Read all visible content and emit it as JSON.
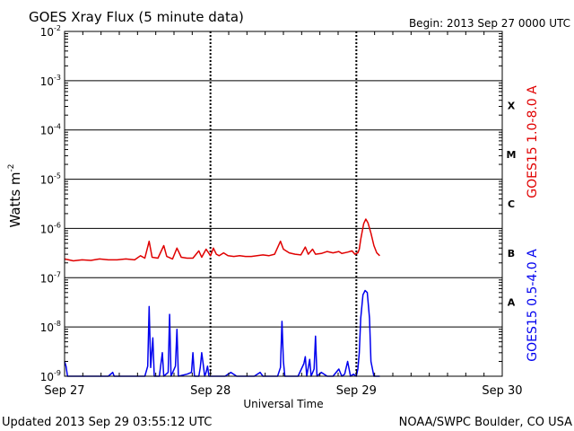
{
  "header": {
    "title": "GOES Xray Flux (5 minute data)",
    "begin": "Begin:  2013 Sep 27 0000 UTC"
  },
  "footer": {
    "updated": "Updated 2013 Sep 29 03:55:12 UTC",
    "credit": "NOAA/SWPC Boulder, CO USA"
  },
  "colors": {
    "long": "#e00000",
    "short": "#0000ee",
    "axis": "#000000"
  },
  "chart_data": {
    "type": "line",
    "title": "GOES Xray Flux (5 minute data)",
    "xlabel": "Universal Time",
    "ylabel_base": "Watts m",
    "ylabel_exp": "-2",
    "yscale": "log",
    "ylim_exp": [
      -9,
      -2
    ],
    "xlim_days": [
      0,
      3
    ],
    "y_ticks": [
      {
        "exp": -2,
        "base": "10",
        "sup": "-2"
      },
      {
        "exp": -3,
        "base": "10",
        "sup": "-3"
      },
      {
        "exp": -4,
        "base": "10",
        "sup": "-4"
      },
      {
        "exp": -5,
        "base": "10",
        "sup": "-5"
      },
      {
        "exp": -6,
        "base": "10",
        "sup": "-6"
      },
      {
        "exp": -7,
        "base": "10",
        "sup": "-7"
      },
      {
        "exp": -8,
        "base": "10",
        "sup": "-8"
      },
      {
        "exp": -9,
        "base": "10",
        "sup": "-9"
      }
    ],
    "x_ticks": [
      {
        "day": 0,
        "label": "Sep 27"
      },
      {
        "day": 1,
        "label": "Sep 28"
      },
      {
        "day": 2,
        "label": "Sep 29"
      },
      {
        "day": 3,
        "label": "Sep 30"
      }
    ],
    "flare_classes": [
      {
        "label": "X",
        "exp": -3.5
      },
      {
        "label": "M",
        "exp": -4.5
      },
      {
        "label": "C",
        "exp": -5.5
      },
      {
        "label": "B",
        "exp": -6.5
      },
      {
        "label": "A",
        "exp": -7.5
      }
    ],
    "grid": true,
    "series": [
      {
        "name": "GOES15 1.0-8.0 A",
        "color": "#e00000",
        "points": [
          [
            0.0,
            2.4e-07
          ],
          [
            0.06,
            2.2e-07
          ],
          [
            0.12,
            2.3e-07
          ],
          [
            0.18,
            2.25e-07
          ],
          [
            0.24,
            2.4e-07
          ],
          [
            0.3,
            2.3e-07
          ],
          [
            0.36,
            2.3e-07
          ],
          [
            0.42,
            2.4e-07
          ],
          [
            0.48,
            2.3e-07
          ],
          [
            0.52,
            2.8e-07
          ],
          [
            0.55,
            2.5e-07
          ],
          [
            0.58,
            5.5e-07
          ],
          [
            0.6,
            2.6e-07
          ],
          [
            0.64,
            2.5e-07
          ],
          [
            0.68,
            4.5e-07
          ],
          [
            0.7,
            2.7e-07
          ],
          [
            0.74,
            2.4e-07
          ],
          [
            0.77,
            4e-07
          ],
          [
            0.8,
            2.6e-07
          ],
          [
            0.84,
            2.5e-07
          ],
          [
            0.88,
            2.5e-07
          ],
          [
            0.92,
            3.5e-07
          ],
          [
            0.94,
            2.6e-07
          ],
          [
            0.97,
            3.8e-07
          ],
          [
            1.0,
            2.8e-07
          ],
          [
            1.02,
            4e-07
          ],
          [
            1.04,
            3e-07
          ],
          [
            1.06,
            2.8e-07
          ],
          [
            1.09,
            3.2e-07
          ],
          [
            1.12,
            2.8e-07
          ],
          [
            1.16,
            2.7e-07
          ],
          [
            1.2,
            2.8e-07
          ],
          [
            1.24,
            2.7e-07
          ],
          [
            1.28,
            2.7e-07
          ],
          [
            1.32,
            2.8e-07
          ],
          [
            1.36,
            2.9e-07
          ],
          [
            1.4,
            2.8e-07
          ],
          [
            1.44,
            3e-07
          ],
          [
            1.48,
            5.5e-07
          ],
          [
            1.5,
            3.8e-07
          ],
          [
            1.54,
            3.2e-07
          ],
          [
            1.58,
            3e-07
          ],
          [
            1.62,
            2.9e-07
          ],
          [
            1.65,
            4.2e-07
          ],
          [
            1.67,
            3e-07
          ],
          [
            1.7,
            3.8e-07
          ],
          [
            1.72,
            3e-07
          ],
          [
            1.76,
            3.1e-07
          ],
          [
            1.8,
            3.4e-07
          ],
          [
            1.84,
            3.2e-07
          ],
          [
            1.88,
            3.4e-07
          ],
          [
            1.9,
            3.1e-07
          ],
          [
            1.94,
            3.3e-07
          ],
          [
            1.97,
            3.5e-07
          ],
          [
            1.99,
            3e-07
          ],
          [
            2.01,
            3.2e-07
          ],
          [
            2.02,
            3.8e-07
          ],
          [
            2.03,
            6e-07
          ],
          [
            2.05,
            1.25e-06
          ],
          [
            2.065,
            1.55e-06
          ],
          [
            2.08,
            1.3e-06
          ],
          [
            2.1,
            8e-07
          ],
          [
            2.12,
            4.5e-07
          ],
          [
            2.14,
            3.2e-07
          ],
          [
            2.16,
            2.8e-07
          ]
        ]
      },
      {
        "name": "GOES15 0.5-4.0 A",
        "color": "#0000ee",
        "points": [
          [
            0.0,
            2e-09
          ],
          [
            0.01,
            1.6e-09
          ],
          [
            0.02,
            8e-10
          ],
          [
            0.06,
            9e-10
          ],
          [
            0.1,
            8e-10
          ],
          [
            0.16,
            9e-10
          ],
          [
            0.2,
            8e-10
          ],
          [
            0.25,
            9e-10
          ],
          [
            0.3,
            8e-10
          ],
          [
            0.33,
            1.2e-09
          ],
          [
            0.34,
            8e-10
          ],
          [
            0.4,
            8e-10
          ],
          [
            0.46,
            9e-10
          ],
          [
            0.52,
            8e-10
          ],
          [
            0.55,
            9e-10
          ],
          [
            0.57,
            1.6e-09
          ],
          [
            0.58,
            2.6e-08
          ],
          [
            0.59,
            1.5e-09
          ],
          [
            0.605,
            6e-09
          ],
          [
            0.615,
            8e-10
          ],
          [
            0.65,
            9e-10
          ],
          [
            0.67,
            3e-09
          ],
          [
            0.68,
            9e-10
          ],
          [
            0.71,
            1.2e-09
          ],
          [
            0.72,
            1.8e-08
          ],
          [
            0.73,
            9e-10
          ],
          [
            0.76,
            1.6e-09
          ],
          [
            0.77,
            9e-09
          ],
          [
            0.78,
            9e-10
          ],
          [
            0.84,
            1.1e-09
          ],
          [
            0.87,
            1.2e-09
          ],
          [
            0.88,
            3e-09
          ],
          [
            0.89,
            8e-10
          ],
          [
            0.92,
            1e-09
          ],
          [
            0.93,
            1.5e-09
          ],
          [
            0.94,
            3e-09
          ],
          [
            0.95,
            1.8e-09
          ],
          [
            0.96,
            9e-10
          ],
          [
            0.97,
            1.2e-09
          ],
          [
            0.98,
            1.6e-09
          ],
          [
            0.99,
            1e-09
          ],
          [
            1.02,
            9e-10
          ],
          [
            1.1,
            1e-09
          ],
          [
            1.14,
            1.2e-09
          ],
          [
            1.18,
            9e-10
          ],
          [
            1.22,
            1e-09
          ],
          [
            1.3,
            8e-10
          ],
          [
            1.34,
            1.2e-09
          ],
          [
            1.36,
            8e-10
          ],
          [
            1.42,
            9e-10
          ],
          [
            1.46,
            9e-10
          ],
          [
            1.48,
            1.5e-09
          ],
          [
            1.49,
            1.3e-08
          ],
          [
            1.5,
            2e-09
          ],
          [
            1.51,
            9e-10
          ],
          [
            1.56,
            9e-10
          ],
          [
            1.6,
            1e-09
          ],
          [
            1.64,
            1.8e-09
          ],
          [
            1.65,
            2.5e-09
          ],
          [
            1.66,
            1e-09
          ],
          [
            1.68,
            2.2e-09
          ],
          [
            1.69,
            1e-09
          ],
          [
            1.71,
            1.4e-09
          ],
          [
            1.72,
            6.5e-09
          ],
          [
            1.73,
            1e-09
          ],
          [
            1.76,
            1.2e-09
          ],
          [
            1.8,
            9e-10
          ],
          [
            1.84,
            1e-09
          ],
          [
            1.88,
            1.4e-09
          ],
          [
            1.9,
            1e-09
          ],
          [
            1.92,
            1.1e-09
          ],
          [
            1.94,
            2e-09
          ],
          [
            1.96,
            1e-09
          ],
          [
            1.98,
            1.1e-09
          ],
          [
            2.0,
            1e-09
          ],
          [
            2.01,
            1.4e-09
          ],
          [
            2.02,
            3e-09
          ],
          [
            2.03,
            1.5e-08
          ],
          [
            2.045,
            4.5e-08
          ],
          [
            2.06,
            5.5e-08
          ],
          [
            2.075,
            5e-08
          ],
          [
            2.09,
            1.5e-08
          ],
          [
            2.1,
            2e-09
          ],
          [
            2.12,
            9e-10
          ],
          [
            2.16,
            8e-10
          ]
        ]
      }
    ]
  }
}
